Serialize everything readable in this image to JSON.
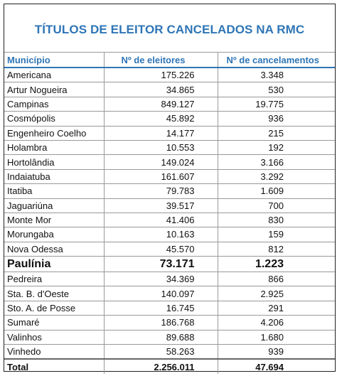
{
  "header": {
    "title": "TÍTULOS DE ELEITOR CANCELADOS NA RMC"
  },
  "table": {
    "columns": [
      "Município",
      "Nº de eleitores",
      "Nº de cancelamentos"
    ],
    "rows": [
      [
        "Americana",
        "175.226",
        "3.348"
      ],
      [
        "Artur Nogueira",
        "34.865",
        "530"
      ],
      [
        "Campinas",
        "849.127",
        "19.775"
      ],
      [
        "Cosmópolis",
        "45.892",
        "936"
      ],
      [
        "Engenheiro Coelho",
        "14.177",
        "215"
      ],
      [
        "Holambra",
        "10.553",
        "192"
      ],
      [
        "Hortolândia",
        "149.024",
        "3.166"
      ],
      [
        "Indaiatuba",
        "161.607",
        "3.292"
      ],
      [
        "Itatiba",
        "79.783",
        "1.609"
      ],
      [
        "Jaguariúna",
        "39.517",
        "700"
      ],
      [
        "Monte Mor",
        "41.406",
        "830"
      ],
      [
        "Morungaba",
        "10.163",
        "159"
      ],
      [
        "Nova Odessa",
        "45.570",
        "812"
      ],
      [
        "Paulínia",
        "73.171",
        "1.223"
      ],
      [
        "Pedreira",
        "34.369",
        "866"
      ],
      [
        "Sta. B. d'Oeste",
        "140.097",
        "2.925"
      ],
      [
        "Sto. A. de Posse",
        "16.745",
        "291"
      ],
      [
        "Sumaré",
        "186.768",
        "4.206"
      ],
      [
        "Valinhos",
        "89.688",
        "1.680"
      ],
      [
        "Vinhedo",
        "58.263",
        "939"
      ]
    ],
    "total": [
      "Total",
      "2.256.011",
      "47.694"
    ]
  }
}
